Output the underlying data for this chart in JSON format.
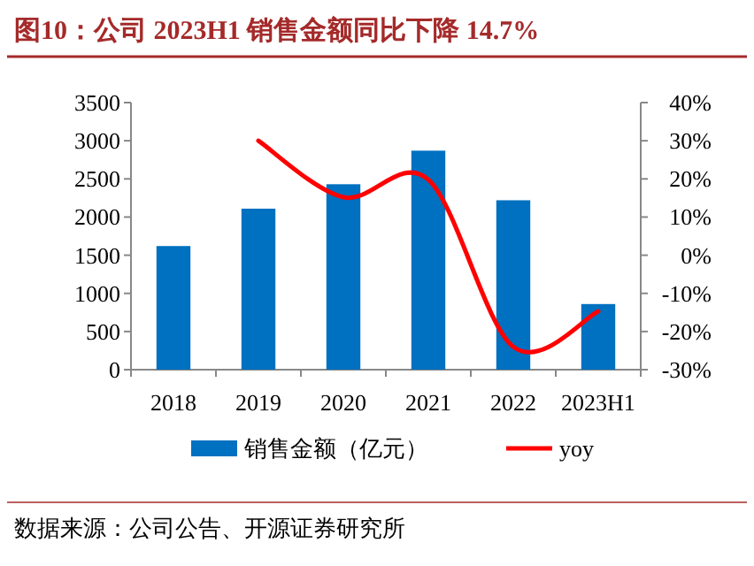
{
  "chart_data": {
    "type": "bar",
    "title": "图10：公司 2023H1 销售金额同比下降 14.7%",
    "categories": [
      "2018",
      "2019",
      "2020",
      "2021",
      "2022",
      "2023H1"
    ],
    "series": [
      {
        "name": "销售金额（亿元）",
        "color": "#0070c0",
        "values": [
          1620,
          2110,
          2430,
          2870,
          2220,
          860
        ]
      },
      {
        "name": "yoy",
        "type": "line",
        "axis": "y2",
        "color": "#ff0000",
        "values": [
          null,
          30,
          15.2,
          19.8,
          -24,
          -14.7
        ]
      }
    ],
    "ylim": [
      0,
      3500
    ],
    "yticks": [
      0,
      500,
      1000,
      1500,
      2000,
      2500,
      3000,
      3500
    ],
    "y2lim": [
      -30,
      40
    ],
    "y2ticks": [
      {
        "value": -30,
        "label": "-30%"
      },
      {
        "value": -20,
        "label": "-20%"
      },
      {
        "value": -10,
        "label": "-10%"
      },
      {
        "value": 0,
        "label": "0%"
      },
      {
        "value": 10,
        "label": "10%"
      },
      {
        "value": 20,
        "label": "20%"
      },
      {
        "value": 30,
        "label": "30%"
      },
      {
        "value": 40,
        "label": "40%"
      }
    ],
    "legend": "bottom",
    "annotations": [
      "数据来源：公司公告、开源证券研究所"
    ]
  }
}
